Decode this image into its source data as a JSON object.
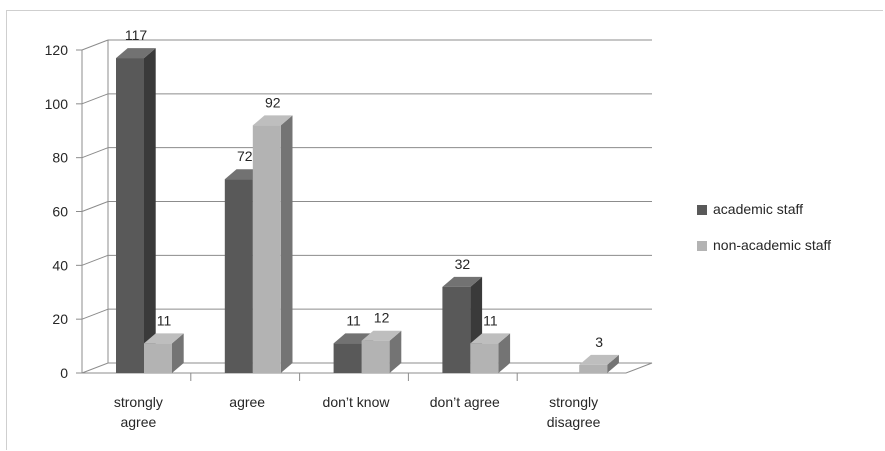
{
  "chart_data": {
    "type": "bar",
    "title": "",
    "xlabel": "",
    "ylabel": "",
    "categories": [
      [
        "strongly",
        "agree"
      ],
      [
        "agree"
      ],
      [
        "don’t know"
      ],
      [
        "don’t agree"
      ],
      [
        "strongly",
        "disagree"
      ]
    ],
    "series": [
      {
        "name": "academic staff",
        "values": [
          117,
          72,
          11,
          32,
          null
        ],
        "color": "#595959"
      },
      {
        "name": "non-academic staff",
        "values": [
          11,
          92,
          12,
          11,
          3
        ],
        "color": "#b3b3b3"
      }
    ],
    "data_labels": [
      [
        "117",
        "72",
        "11",
        "32",
        ""
      ],
      [
        "11",
        "92",
        "12",
        "11",
        "3"
      ]
    ],
    "ylim": [
      0,
      120
    ],
    "yticks": [
      0,
      20,
      40,
      60,
      80,
      100,
      120
    ],
    "grid": true,
    "style": "3d-clustered-column",
    "legend_position": "right"
  }
}
